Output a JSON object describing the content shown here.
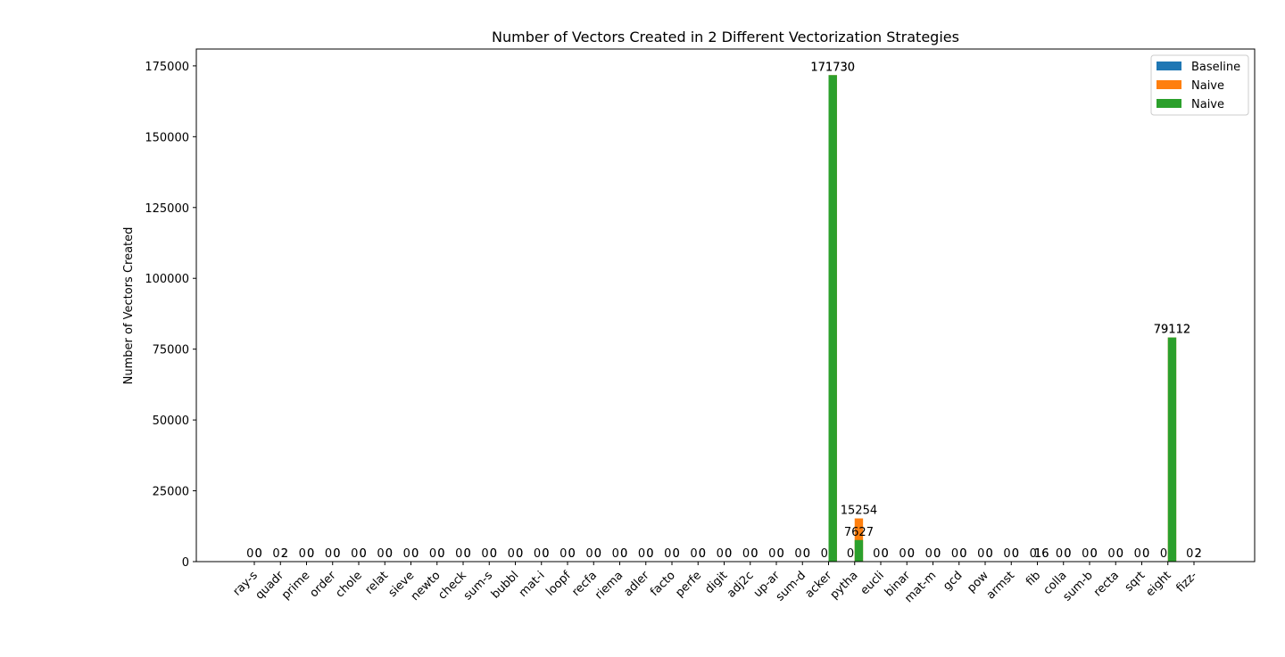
{
  "chart_data": {
    "type": "bar",
    "title": "Number of Vectors Created in 2 Different Vectorization Strategies",
    "xlabel": "",
    "ylabel": "Number of Vectors Created",
    "ylim": [
      0,
      180000
    ],
    "yticks": [
      0,
      25000,
      50000,
      75000,
      100000,
      125000,
      150000,
      175000
    ],
    "grid": false,
    "legend_position": "upper right",
    "categories": [
      "ray-s",
      "quadr",
      "prime",
      "order",
      "chole",
      "relat",
      "sieve",
      "newto",
      "check",
      "sum-s",
      "bubbl",
      "mat-i",
      "loopf",
      "recfa",
      "riema",
      "adler",
      "facto",
      "perfe",
      "digit",
      "adj2c",
      "up-ar",
      "sum-d",
      "acker",
      "pytha",
      "eucli",
      "binar",
      "mat-m",
      "gcd",
      "pow",
      "armst",
      "fib",
      "colla",
      "sum-b",
      "recta",
      "sqrt",
      "eight",
      "fizz-"
    ],
    "series": [
      {
        "name": "Baseline",
        "color": "#1f77b4",
        "values": [
          0,
          0,
          0,
          0,
          0,
          0,
          0,
          0,
          0,
          0,
          0,
          0,
          0,
          0,
          0,
          0,
          0,
          0,
          0,
          0,
          0,
          0,
          0,
          0,
          0,
          0,
          0,
          0,
          0,
          0,
          0,
          0,
          0,
          0,
          0,
          0,
          0
        ]
      },
      {
        "name": "Naive",
        "color": "#ff7f0e",
        "values": [
          0,
          2,
          0,
          0,
          0,
          0,
          0,
          0,
          0,
          0,
          0,
          0,
          0,
          0,
          0,
          0,
          0,
          0,
          0,
          0,
          0,
          0,
          171730,
          15254,
          0,
          0,
          0,
          0,
          0,
          0,
          16,
          0,
          0,
          0,
          0,
          79112,
          2
        ]
      },
      {
        "name": "Naive",
        "color": "#2ca02c",
        "values": [
          0,
          2,
          0,
          0,
          0,
          0,
          0,
          0,
          0,
          0,
          0,
          0,
          0,
          0,
          0,
          0,
          0,
          0,
          0,
          0,
          0,
          0,
          171730,
          7627,
          0,
          0,
          0,
          0,
          0,
          0,
          16,
          0,
          0,
          0,
          0,
          79112,
          2
        ]
      }
    ]
  }
}
